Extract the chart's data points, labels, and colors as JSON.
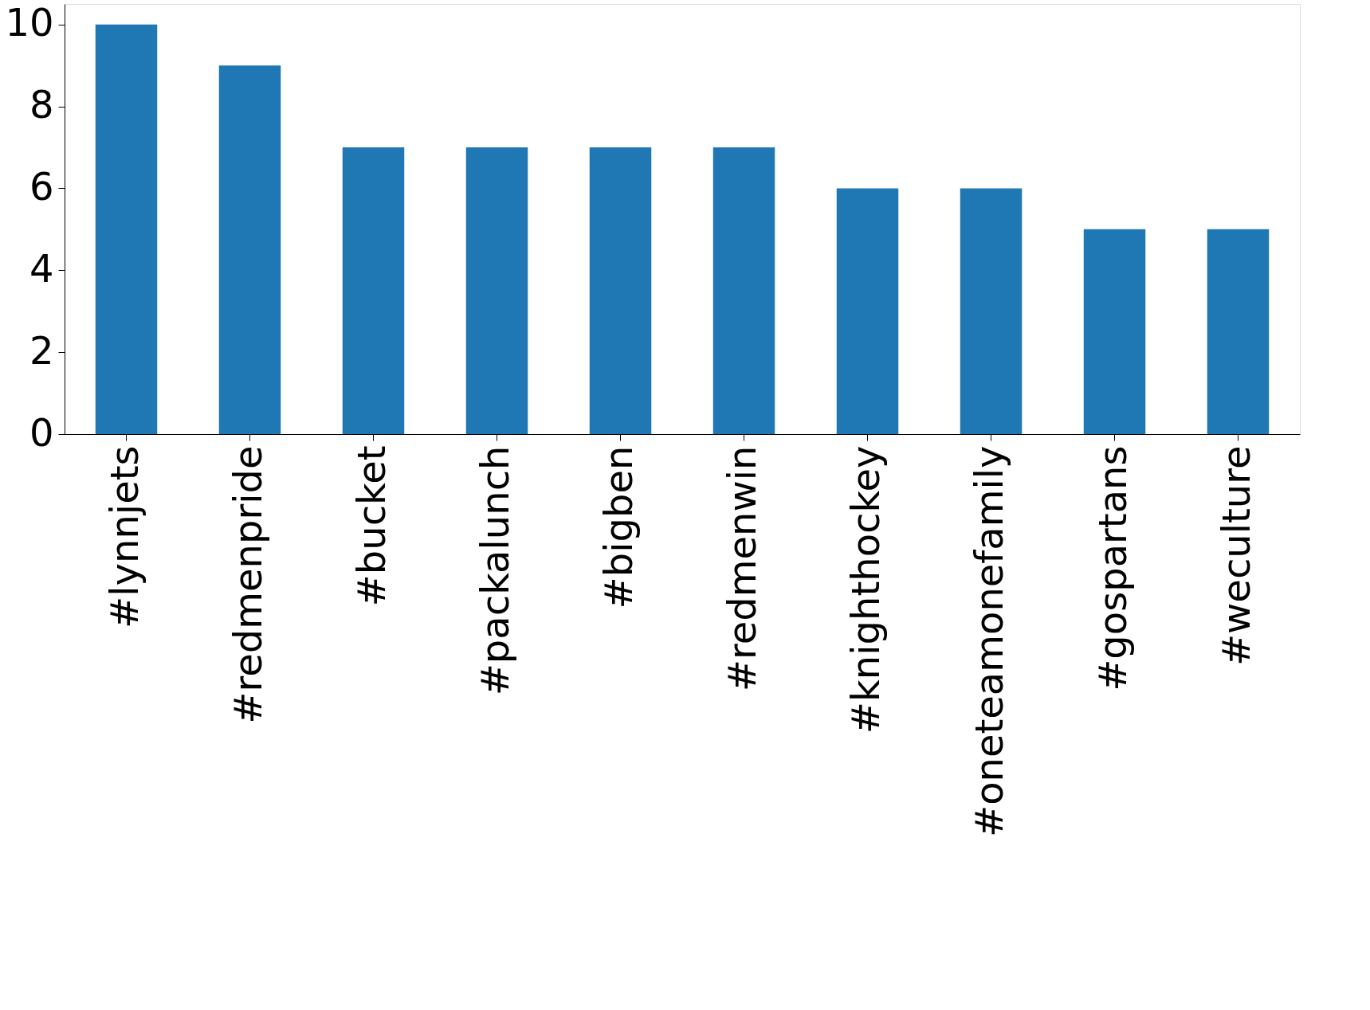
{
  "chart_data": {
    "type": "bar",
    "categories": [
      "#lynnjets",
      "#redmenpride",
      "#bucket",
      "#packalunch",
      "#bigben",
      "#redmenwin",
      "#knighthockey",
      "#oneteamonefamily",
      "#gospartans",
      "#weculture"
    ],
    "values": [
      10,
      9,
      7,
      7,
      7,
      7,
      6,
      6,
      5,
      5
    ],
    "color": "#1f77b4",
    "ylim": [
      0,
      10.5
    ],
    "yticks": [
      0,
      2,
      4,
      6,
      8,
      10
    ],
    "grid": false
  }
}
